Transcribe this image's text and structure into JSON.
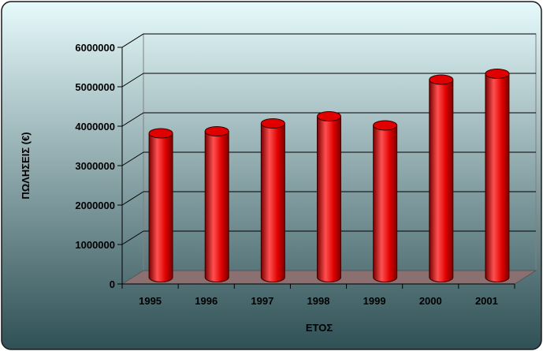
{
  "chart_data": {
    "type": "bar",
    "categories": [
      "1995",
      "1996",
      "1997",
      "1998",
      "1999",
      "2000",
      "2001"
    ],
    "series": [
      {
        "values": [
          3650000,
          3700000,
          3900000,
          4080000,
          3850000,
          5010000,
          5160000
        ]
      }
    ],
    "xlabel": "ΕΤΟΣ",
    "ylabel": "ΠΩΛΗΣΕΙΣ (€)",
    "ylim": [
      0,
      6000000
    ],
    "yticks": [
      "0",
      "1000000",
      "2000000",
      "3000000",
      "4000000",
      "5000000",
      "6000000"
    ],
    "grid": true,
    "legend": "none",
    "colors": {
      "bar": "#e00000",
      "bar_dark": "#7a0000",
      "bar_light": "#ff5050",
      "background_top": "#e6fafc",
      "background_bottom": "#2f5055",
      "floor": "#8a7070",
      "frame_border": "#1a1a1a"
    }
  }
}
